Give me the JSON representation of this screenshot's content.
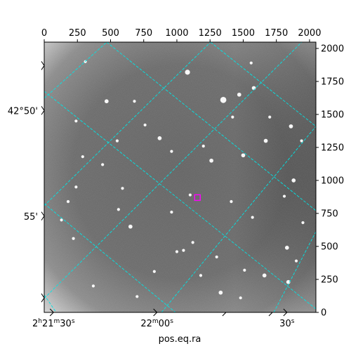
{
  "chart_data": {
    "type": "scatter",
    "title": "",
    "xlabel": "pos.eq.ra",
    "ylabel": "",
    "pixel_axes": {
      "x": {
        "range": [
          0,
          2048
        ],
        "ticks": [
          0,
          250,
          500,
          750,
          1000,
          1250,
          1500,
          1750,
          2000
        ],
        "position": "top"
      },
      "y": {
        "range": [
          0,
          2048
        ],
        "ticks": [
          0,
          250,
          500,
          750,
          1000,
          1250,
          1500,
          1750,
          2000
        ],
        "position": "right"
      }
    },
    "world_axes": {
      "ra": {
        "ticks": [
          {
            "label_parts": [
              "2",
              "h",
              "21",
              "m",
              "30",
              "s"
            ],
            "x": 70
          },
          {
            "label_parts": [
              "22",
              "m",
              "00",
              "s"
            ],
            "x": 850
          },
          {
            "label_parts": [
              "30",
              "s"
            ],
            "x": 1830
          }
        ]
      },
      "dec": {
        "ticks": [
          {
            "label": "42°50'",
            "y": 1530
          },
          {
            "label": "55'",
            "y": 730
          }
        ]
      }
    },
    "grid": true,
    "colors": {
      "grid": "#00e5e5",
      "marker": "#ff00ff"
    },
    "marker": {
      "x": 1155,
      "y": 870,
      "shape": "square"
    },
    "stars": [
      [
        1080,
        1820,
        4
      ],
      [
        1350,
        1610,
        5
      ],
      [
        1470,
        1650,
        3
      ],
      [
        1580,
        1700,
        3
      ],
      [
        470,
        1600,
        3
      ],
      [
        680,
        1600,
        2
      ],
      [
        310,
        1900,
        2
      ],
      [
        760,
        1420,
        2
      ],
      [
        240,
        1450,
        2
      ],
      [
        550,
        1300,
        2
      ],
      [
        440,
        1120,
        2
      ],
      [
        870,
        1320,
        3
      ],
      [
        1260,
        1150,
        3
      ],
      [
        1670,
        1300,
        3
      ],
      [
        1500,
        1190,
        3
      ],
      [
        1860,
        1410,
        3
      ],
      [
        1940,
        1300,
        2
      ],
      [
        1880,
        1000,
        3
      ],
      [
        590,
        940,
        2
      ],
      [
        1100,
        890,
        2
      ],
      [
        1810,
        880,
        2
      ],
      [
        650,
        650,
        3
      ],
      [
        960,
        760,
        2
      ],
      [
        1410,
        840,
        2
      ],
      [
        1570,
        720,
        2
      ],
      [
        1830,
        490,
        3
      ],
      [
        1120,
        530,
        2
      ],
      [
        1000,
        460,
        2
      ],
      [
        830,
        310,
        2
      ],
      [
        1050,
        470,
        2
      ],
      [
        1300,
        420,
        2
      ],
      [
        1510,
        320,
        2
      ],
      [
        1660,
        280,
        3
      ],
      [
        1840,
        230,
        3
      ],
      [
        1900,
        390,
        2
      ],
      [
        370,
        200,
        2
      ],
      [
        220,
        560,
        2
      ],
      [
        130,
        700,
        2
      ],
      [
        240,
        950,
        2
      ],
      [
        180,
        840,
        2
      ],
      [
        1180,
        280,
        2
      ],
      [
        1330,
        150,
        3
      ],
      [
        1480,
        110,
        2
      ],
      [
        700,
        120,
        2
      ],
      [
        560,
        780,
        2
      ],
      [
        1950,
        680,
        2
      ],
      [
        1420,
        1480,
        2
      ],
      [
        290,
        1180,
        2
      ],
      [
        1700,
        1480,
        2
      ],
      [
        1200,
        1260,
        2
      ],
      [
        960,
        1220,
        2
      ],
      [
        1560,
        1890,
        2
      ]
    ]
  }
}
